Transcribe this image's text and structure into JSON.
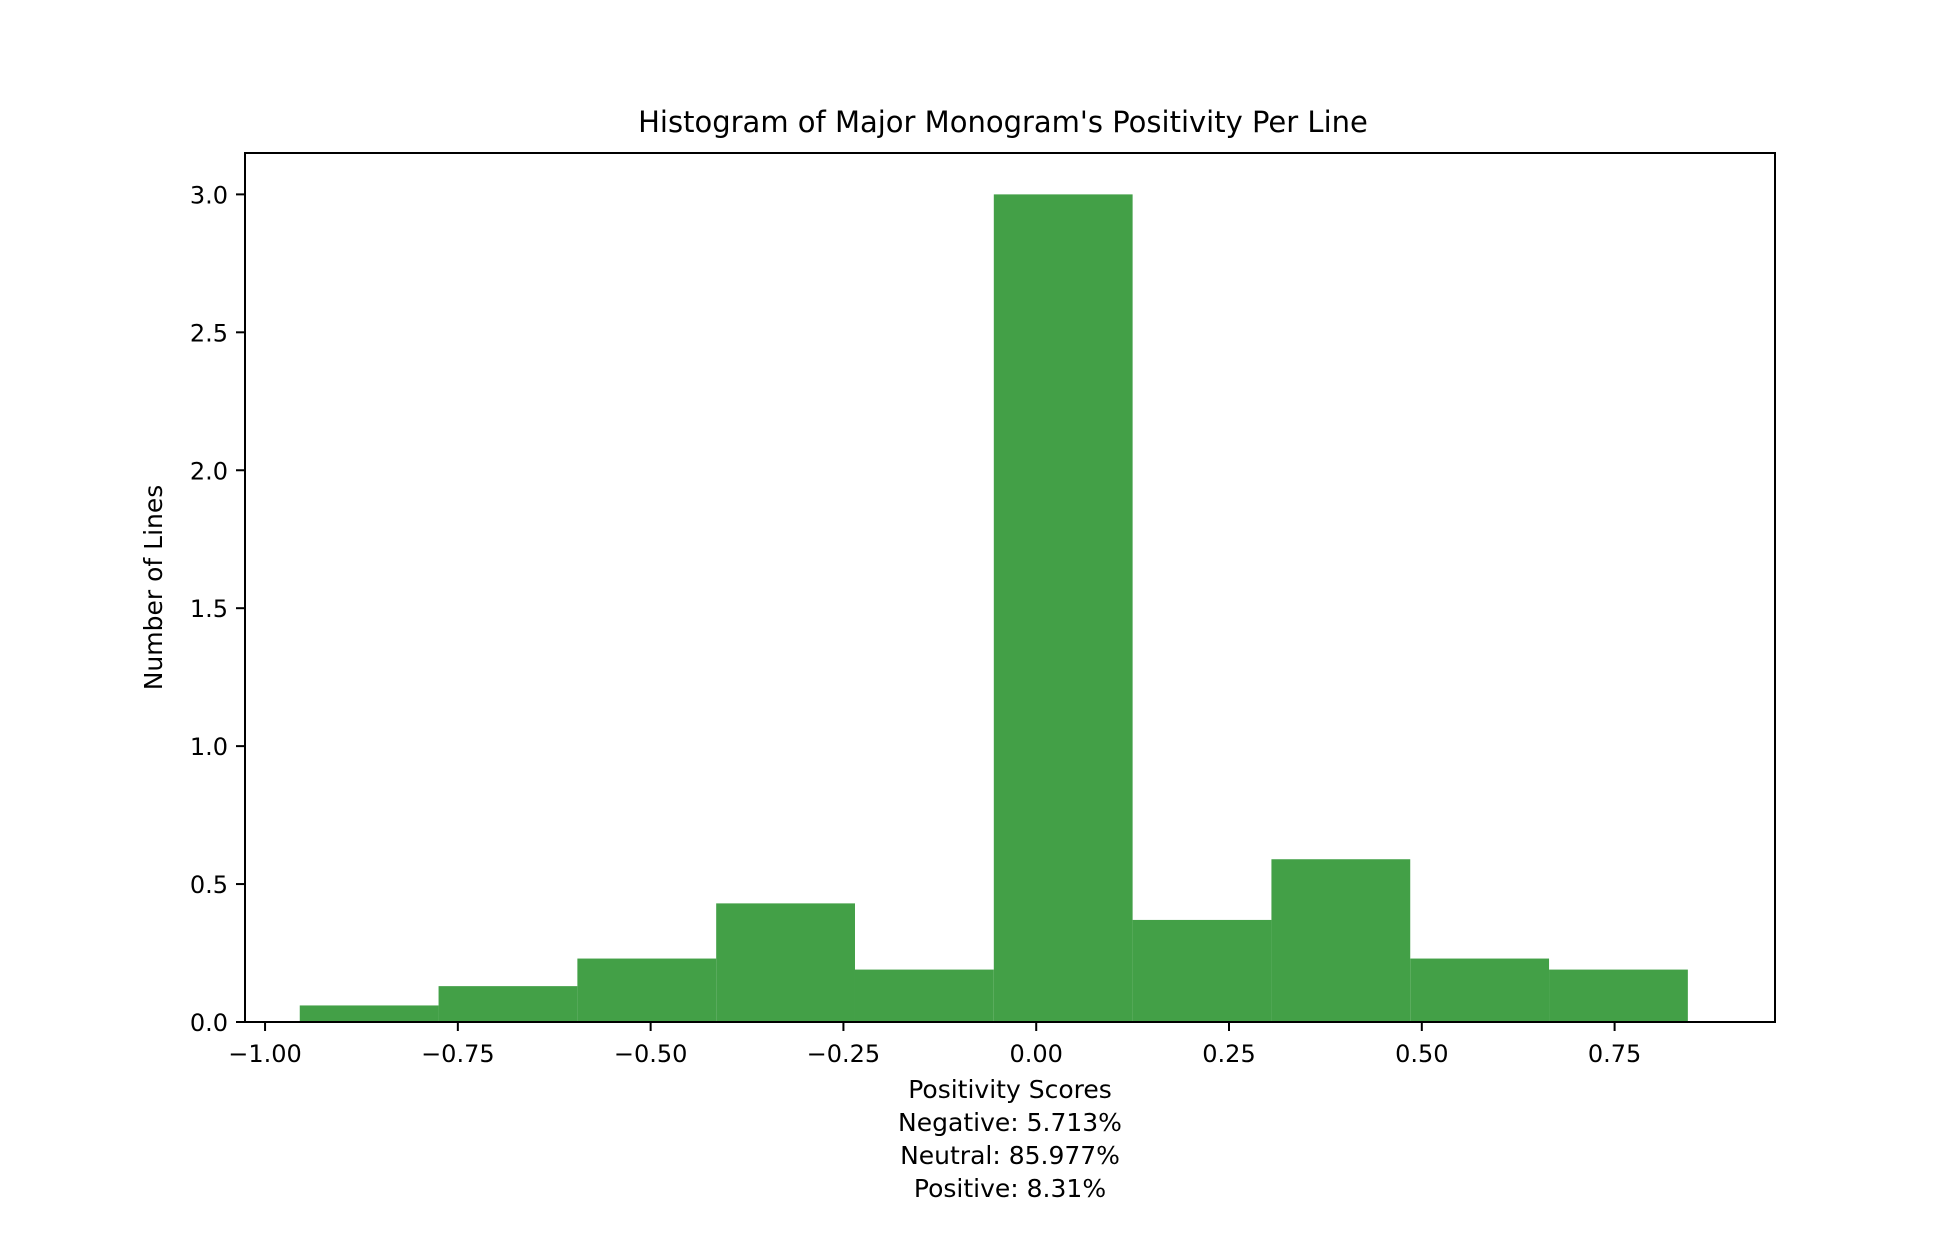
{
  "chart_data": {
    "type": "bar",
    "title": "Histogram of Major Monogram's Positivity Per Line",
    "xlabel": "Positivity Scores",
    "xlabel_lines": [
      "Negative: 5.713%",
      "Neutral: 85.977%",
      "Positive: 8.31%"
    ],
    "ylabel": "Number of Lines",
    "bar_color": "#43a047",
    "xlim": [
      -1.026,
      0.958
    ],
    "ylim": [
      0,
      3.15
    ],
    "bins": [
      {
        "x0": -0.955,
        "x1": -0.775,
        "value": 0.06
      },
      {
        "x0": -0.775,
        "x1": -0.595,
        "value": 0.13
      },
      {
        "x0": -0.595,
        "x1": -0.415,
        "value": 0.23
      },
      {
        "x0": -0.415,
        "x1": -0.235,
        "value": 0.43
      },
      {
        "x0": -0.235,
        "x1": -0.055,
        "value": 0.19
      },
      {
        "x0": -0.055,
        "x1": 0.125,
        "value": 3.0
      },
      {
        "x0": 0.125,
        "x1": 0.305,
        "value": 0.37
      },
      {
        "x0": 0.305,
        "x1": 0.485,
        "value": 0.59
      },
      {
        "x0": 0.485,
        "x1": 0.665,
        "value": 0.23
      },
      {
        "x0": 0.665,
        "x1": 0.845,
        "value": 0.19
      }
    ],
    "xticks": [
      {
        "value": -1.0,
        "label": "−1.00"
      },
      {
        "value": -0.75,
        "label": "−0.75"
      },
      {
        "value": -0.5,
        "label": "−0.50"
      },
      {
        "value": -0.25,
        "label": "−0.25"
      },
      {
        "value": 0.0,
        "label": "0.00"
      },
      {
        "value": 0.25,
        "label": "0.25"
      },
      {
        "value": 0.5,
        "label": "0.50"
      },
      {
        "value": 0.75,
        "label": "0.75"
      }
    ],
    "yticks": [
      {
        "value": 0.0,
        "label": "0.0"
      },
      {
        "value": 0.5,
        "label": "0.5"
      },
      {
        "value": 1.0,
        "label": "1.0"
      },
      {
        "value": 1.5,
        "label": "1.5"
      },
      {
        "value": 2.0,
        "label": "2.0"
      },
      {
        "value": 2.5,
        "label": "2.5"
      },
      {
        "value": 3.0,
        "label": "3.0"
      }
    ],
    "grid": false,
    "legend": "none"
  }
}
